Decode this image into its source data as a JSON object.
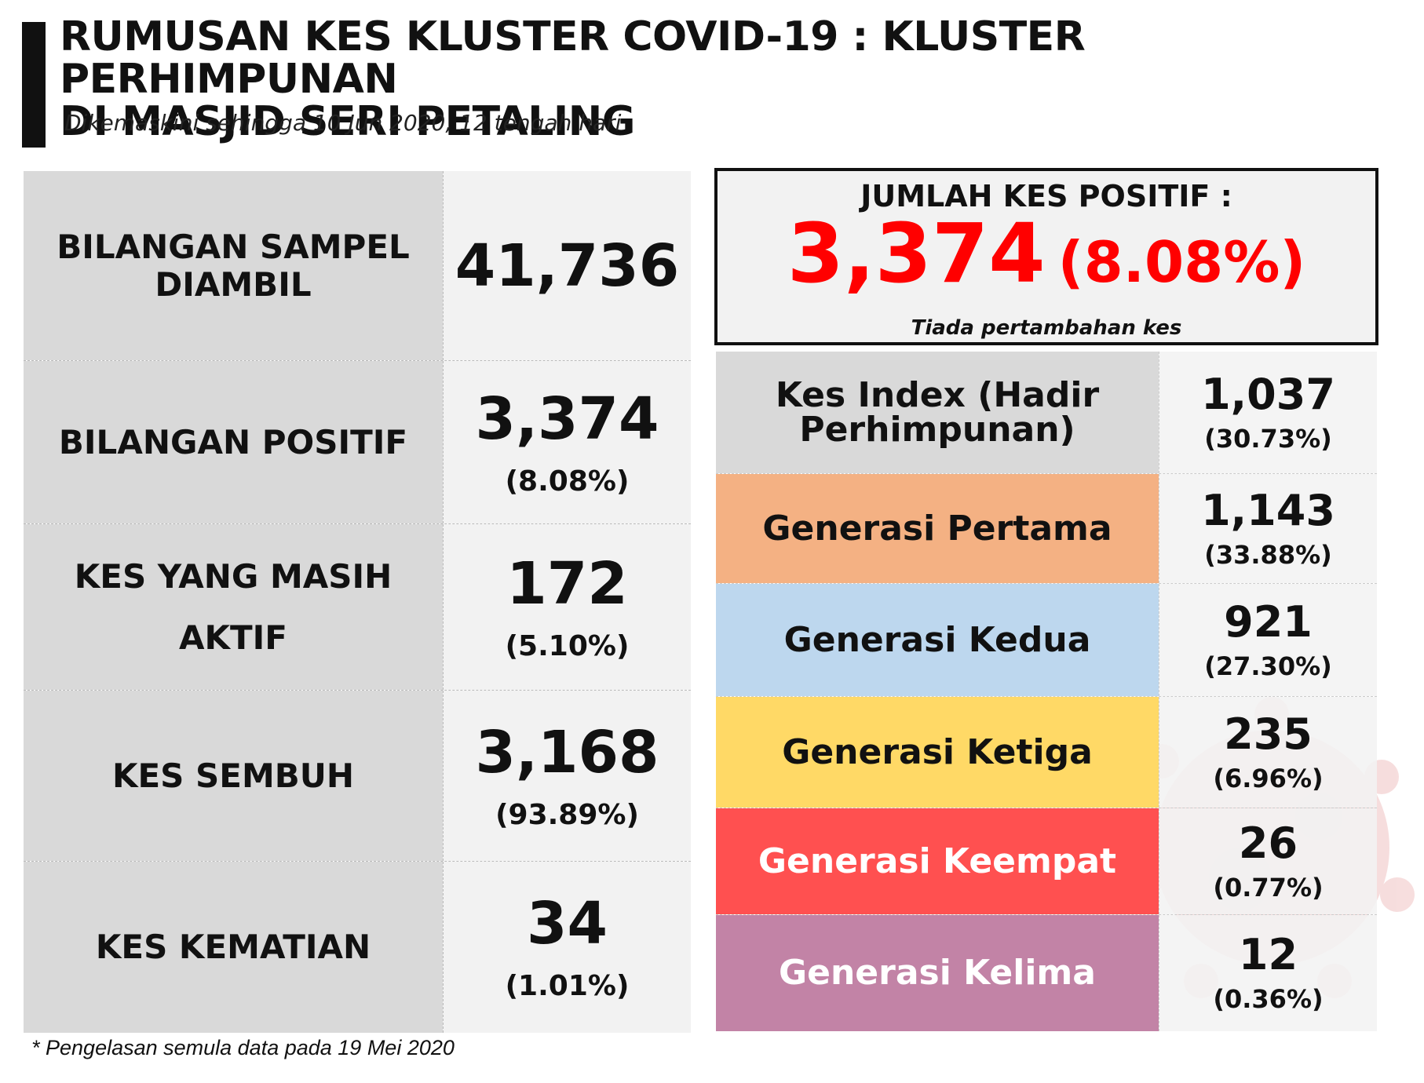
{
  "header": {
    "title_line1": "RUMUSAN KES KLUSTER COVID-19 : KLUSTER PERHIMPUNAN",
    "title_line2": "DI MASJID SERI PETALING",
    "subtitle": "Dikemaskini sehingga 10 Jun 2020, 12 tengah hari"
  },
  "left_table": [
    {
      "label": "BILANGAN SAMPEL DIAMBIL",
      "value": "41,736",
      "pct": ""
    },
    {
      "label": "BILANGAN POSITIF",
      "value": "3,374",
      "pct": "(8.08%)"
    },
    {
      "label": "KES YANG MASIH AKTIF",
      "value": "172",
      "pct": "(5.10%)"
    },
    {
      "label": "KES SEMBUH",
      "value": "3,168",
      "pct": "(93.89%)"
    },
    {
      "label": "KES KEMATIAN",
      "value": "34",
      "pct": "(1.01%)"
    }
  ],
  "total": {
    "label": "JUMLAH KES POSITIF :",
    "value": "3,374",
    "pct": "(8.08%)",
    "note": "Tiada pertambahan kes",
    "color": "#ff0000"
  },
  "right_table": [
    {
      "label": "Kes Index (Hadir Perhimpunan)",
      "value": "1,037",
      "pct": "(30.73%)",
      "color": "#d9d9d9",
      "text_color": "#111111"
    },
    {
      "label": "Generasi Pertama",
      "value": "1,143",
      "pct": "(33.88%)",
      "color": "#f4b183",
      "text_color": "#111111"
    },
    {
      "label": "Generasi Kedua",
      "value": "921",
      "pct": "(27.30%)",
      "color": "#bdd7ee",
      "text_color": "#111111"
    },
    {
      "label": "Generasi Ketiga",
      "value": "235",
      "pct": "(6.96%)",
      "color": "#ffd966",
      "text_color": "#111111"
    },
    {
      "label": "Generasi Keempat",
      "value": "26",
      "pct": "(0.77%)",
      "color": "#ff5050",
      "text_color": "#ffffff"
    },
    {
      "label": "Generasi Kelima",
      "value": "12",
      "pct": "(0.36%)",
      "color": "#c283a6",
      "text_color": "#ffffff"
    }
  ],
  "footnote": "* Pengelasan semula data pada 19 Mei 2020"
}
